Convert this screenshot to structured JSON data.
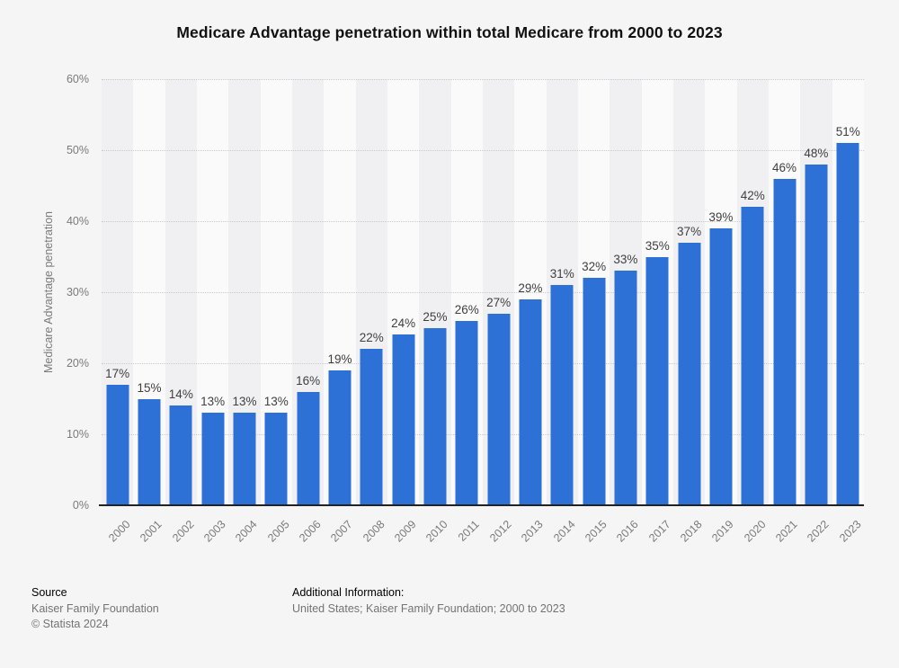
{
  "page": {
    "background": "#f5f5f6"
  },
  "chart_data": {
    "type": "bar",
    "title": "Medicare Advantage penetration within total Medicare from 2000 to 2023",
    "xlabel": "",
    "ylabel": "Medicare Advantage penetration",
    "categories": [
      "2000",
      "2001",
      "2002",
      "2003",
      "2004",
      "2005",
      "2006",
      "2007",
      "2008",
      "2009",
      "2010",
      "2011",
      "2012",
      "2013",
      "2014",
      "2015",
      "2016",
      "2017",
      "2018",
      "2019",
      "2020",
      "2021",
      "2022",
      "2023"
    ],
    "values": [
      17,
      15,
      14,
      13,
      13,
      13,
      16,
      19,
      22,
      24,
      25,
      26,
      27,
      29,
      31,
      32,
      33,
      35,
      37,
      39,
      42,
      46,
      48,
      51
    ],
    "value_suffix": "%",
    "ylim": [
      0,
      60
    ],
    "yticks": [
      0,
      10,
      20,
      30,
      40,
      50,
      60
    ],
    "ytick_suffix": "%",
    "grid": "horizontal-dotted",
    "legend": null,
    "colors": {
      "bar": "#2d70d6",
      "stripe_even": "#f0f0f2",
      "stripe_odd": "#fafafa",
      "gridline": "#c9c9c9",
      "axis_line": "#222222",
      "bar_label": "#3f3f3f",
      "tick_label": "#7a7a7a"
    }
  },
  "footer": {
    "source_label": "Source",
    "source_name": "Kaiser Family Foundation",
    "copyright": "© Statista 2024",
    "additional_label": "Additional Information:",
    "additional_text": "United States; Kaiser Family Foundation; 2000 to 2023"
  }
}
